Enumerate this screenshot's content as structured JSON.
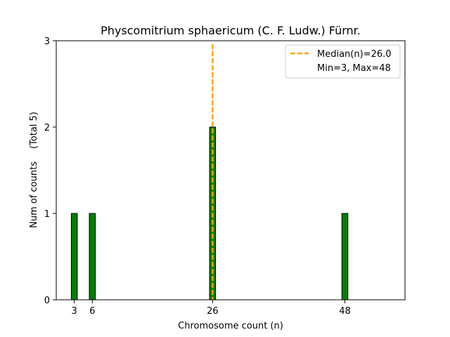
{
  "chart_data": {
    "type": "bar",
    "title": "Physcomitrium sphaericum (C. F. Ludw.) Fürnr.",
    "xlabel": "Chromosome count (n)",
    "ylabel": "Num of counts",
    "ylabel_extra": "(Total 5)",
    "xlim": [
      0,
      58
    ],
    "ylim": [
      0,
      3
    ],
    "xticks": [
      3,
      6,
      26,
      48
    ],
    "yticks": [
      0,
      1,
      2,
      3
    ],
    "bar_width": 1,
    "bars": [
      {
        "x": 3,
        "count": 1
      },
      {
        "x": 6,
        "count": 1
      },
      {
        "x": 26,
        "count": 2
      },
      {
        "x": 48,
        "count": 1
      }
    ],
    "median": 26.0,
    "legend": {
      "position": "top-right",
      "median_label": "Median(n)=26.0",
      "range_label": "Min=3, Max=48"
    },
    "colors": {
      "bar_fill": "#008000",
      "bar_edge": "#000000",
      "median_line": "#FFA500"
    }
  }
}
